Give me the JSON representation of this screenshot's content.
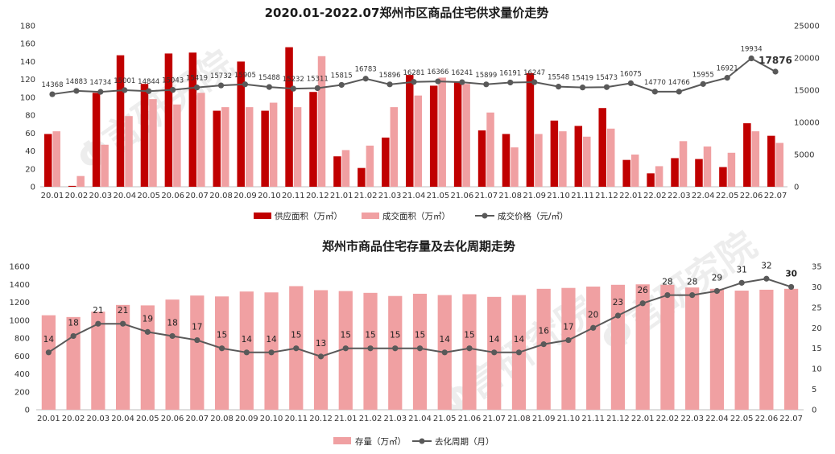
{
  "colors": {
    "supply": "#C00000",
    "deal": "#F0A0A2",
    "stock": "#F0A0A2",
    "line": "#595959"
  },
  "watermark": "Φ言研究院",
  "chart_data": [
    {
      "type": "bar+line",
      "title": "2020.01-2022.07郑州市区商品住宅供求量价走势",
      "categories": [
        "20.01",
        "20.02",
        "20.03",
        "20.04",
        "20.05",
        "20.06",
        "20.07",
        "20.08",
        "20.09",
        "20.10",
        "20.11",
        "20.12",
        "21.01",
        "21.02",
        "21.03",
        "21.04",
        "21.05",
        "21.06",
        "21.07",
        "21.08",
        "21.09",
        "21.10",
        "21.11",
        "21.12",
        "22.01",
        "22.02",
        "22.03",
        "22.04",
        "22.05",
        "22.06",
        "22.07"
      ],
      "series": [
        {
          "name": "供应面积（万㎡）",
          "type": "bar",
          "axis": "left",
          "values": [
            59,
            1,
            105,
            147,
            115,
            149,
            150,
            85,
            140,
            85,
            156,
            106,
            34,
            21,
            55,
            125,
            113,
            117,
            63,
            59,
            127,
            74,
            68,
            88,
            30,
            15,
            32,
            31,
            22,
            71,
            57
          ]
        },
        {
          "name": "成交面积（万㎡）",
          "type": "bar",
          "axis": "left",
          "values": [
            62,
            12,
            47,
            79,
            98,
            92,
            105,
            89,
            89,
            94,
            89,
            146,
            41,
            46,
            89,
            102,
            122,
            115,
            83,
            44,
            59,
            62,
            56,
            65,
            36,
            23,
            51,
            45,
            38,
            62,
            49
          ]
        },
        {
          "name": "成交价格（元/㎡）",
          "type": "line",
          "axis": "right",
          "values": [
            14368,
            14883,
            14734,
            15001,
            14844,
            15043,
            15419,
            15732,
            15905,
            15488,
            15232,
            15311,
            15815,
            16783,
            15896,
            16281,
            16366,
            16241,
            15899,
            16191,
            16247,
            15548,
            15419,
            15473,
            16075,
            14770,
            14766,
            15955,
            16921,
            19934,
            17876
          ]
        }
      ],
      "price_labels": [
        "14368",
        "14883",
        "14734",
        "15001",
        "14844",
        "15043",
        "15419",
        "15732",
        "15905",
        "15488",
        "15232",
        "15311",
        "15815",
        "16783",
        "15896",
        "16281",
        "16366",
        "16241",
        "15899",
        "16191",
        "16247",
        "15548",
        "15419",
        "15473",
        "16075",
        "14770",
        "14766",
        "15955",
        "16921",
        "19934",
        "17876"
      ],
      "ylim_left": [
        0,
        180
      ],
      "ylim_right": [
        0,
        25000
      ],
      "yticks_left": [
        "0",
        "20",
        "40",
        "60",
        "80",
        "100",
        "120",
        "140",
        "160",
        "180"
      ],
      "yticks_right": [
        "0",
        "5000",
        "10000",
        "15000",
        "20000",
        "25000"
      ],
      "legend": [
        "供应面积（万㎡）",
        "成交面积（万㎡）",
        "成交价格（元/㎡）"
      ]
    },
    {
      "type": "bar+line",
      "title": "郑州市商品住宅存量及去化周期走势",
      "categories": [
        "20.01",
        "20.02",
        "20.03",
        "20.04",
        "20.05",
        "20.06",
        "20.07",
        "20.08",
        "20.09",
        "20.10",
        "20.11",
        "20.12",
        "21.01",
        "21.02",
        "21.03",
        "21.04",
        "21.05",
        "21.06",
        "21.07",
        "21.08",
        "21.09",
        "21.10",
        "21.11",
        "21.12",
        "22.01",
        "22.02",
        "22.03",
        "22.04",
        "22.05",
        "22.06",
        "22.07"
      ],
      "series": [
        {
          "name": "存量（万㎡）",
          "type": "bar",
          "axis": "left",
          "values": [
            1055,
            1035,
            1095,
            1170,
            1165,
            1230,
            1275,
            1265,
            1320,
            1310,
            1380,
            1335,
            1325,
            1305,
            1270,
            1295,
            1280,
            1290,
            1260,
            1280,
            1350,
            1360,
            1375,
            1395,
            1400,
            1395,
            1365,
            1350,
            1330,
            1340,
            1350
          ]
        },
        {
          "name": "去化周期（月）",
          "type": "line",
          "axis": "right",
          "values": [
            14,
            18,
            21,
            21,
            19,
            18,
            17,
            15,
            14,
            14,
            15,
            13,
            15,
            15,
            15,
            15,
            14,
            15,
            14,
            14,
            16,
            17,
            20,
            23,
            26,
            28,
            28,
            29,
            31,
            32,
            30
          ]
        }
      ],
      "cycle_labels": [
        "14",
        "18",
        "21",
        "21",
        "19",
        "18",
        "17",
        "15",
        "14",
        "14",
        "15",
        "13",
        "15",
        "15",
        "15",
        "15",
        "14",
        "15",
        "14",
        "14",
        "16",
        "17",
        "20",
        "23",
        "26",
        "28",
        "28",
        "29",
        "31",
        "32",
        "30"
      ],
      "ylim_left": [
        0,
        1600
      ],
      "ylim_right": [
        0,
        35
      ],
      "yticks_left": [
        "0",
        "200",
        "400",
        "600",
        "800",
        "1000",
        "1200",
        "1400",
        "1600"
      ],
      "yticks_right": [
        "0",
        "5",
        "10",
        "15",
        "20",
        "25",
        "30",
        "35"
      ],
      "legend": [
        "存量（万㎡）",
        "去化周期（月）"
      ]
    }
  ]
}
